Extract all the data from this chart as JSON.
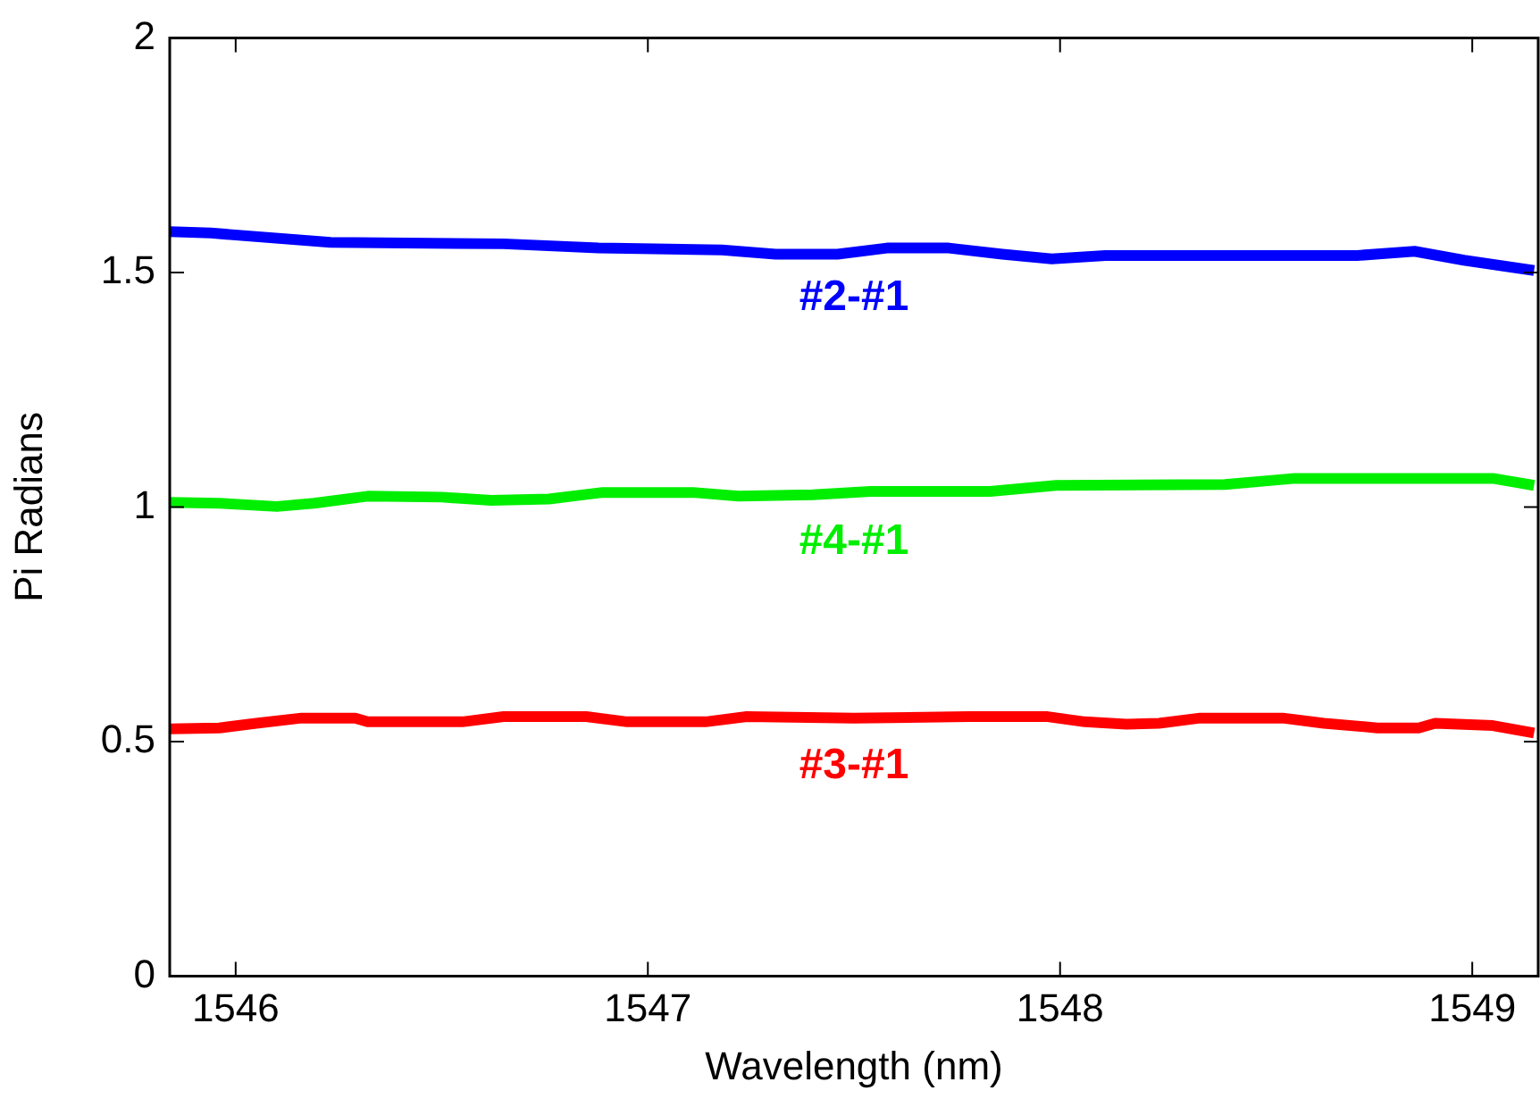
{
  "chart_data": {
    "type": "line",
    "xlabel": "Wavelength (nm)",
    "ylabel": "Pi Radians",
    "xlim": [
      1545.84,
      1549.16
    ],
    "ylim": [
      0,
      2
    ],
    "xticks": [
      1546,
      1547,
      1548,
      1549
    ],
    "yticks": [
      0,
      0.5,
      1,
      1.5,
      2
    ],
    "grid": false,
    "legend": false,
    "marker": "none",
    "line_style": "solid",
    "series": [
      {
        "name": "#2-#1",
        "color": "#0000ff",
        "x": [
          1545.84,
          1545.94,
          1546.23,
          1546.65,
          1546.88,
          1547.18,
          1547.31,
          1547.46,
          1547.58,
          1547.73,
          1547.86,
          1547.98,
          1548.11,
          1548.72,
          1548.86,
          1548.98,
          1549.15
        ],
        "values": [
          1.587,
          1.584,
          1.564,
          1.561,
          1.552,
          1.548,
          1.539,
          1.539,
          1.552,
          1.552,
          1.539,
          1.529,
          1.536,
          1.536,
          1.545,
          1.526,
          1.504
        ]
      },
      {
        "name": "#4-#1",
        "color": "#00ee00",
        "x": [
          1545.84,
          1545.96,
          1546.1,
          1546.19,
          1546.32,
          1546.5,
          1546.62,
          1546.76,
          1546.89,
          1547.11,
          1547.22,
          1547.4,
          1547.54,
          1547.83,
          1547.99,
          1548.4,
          1548.57,
          1549.05,
          1549.15
        ],
        "values": [
          1.01,
          1.008,
          1.001,
          1.008,
          1.023,
          1.021,
          1.014,
          1.017,
          1.031,
          1.031,
          1.023,
          1.026,
          1.033,
          1.033,
          1.046,
          1.048,
          1.061,
          1.061,
          1.046
        ]
      },
      {
        "name": "#3-#1",
        "color": "#ff0000",
        "x": [
          1545.84,
          1545.96,
          1546.05,
          1546.16,
          1546.29,
          1546.32,
          1546.55,
          1546.65,
          1546.85,
          1546.95,
          1547.14,
          1547.24,
          1547.5,
          1547.78,
          1547.97,
          1548.06,
          1548.16,
          1548.24,
          1548.34,
          1548.54,
          1548.64,
          1548.77,
          1548.87,
          1548.91,
          1549.05,
          1549.15
        ],
        "values": [
          0.527,
          0.529,
          0.539,
          0.55,
          0.55,
          0.542,
          0.542,
          0.553,
          0.553,
          0.542,
          0.542,
          0.553,
          0.55,
          0.553,
          0.553,
          0.542,
          0.537,
          0.539,
          0.55,
          0.55,
          0.539,
          0.529,
          0.529,
          0.539,
          0.534,
          0.518
        ]
      }
    ]
  }
}
